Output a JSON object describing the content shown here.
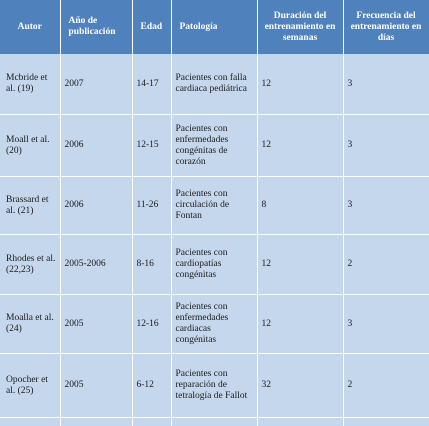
{
  "headers": {
    "autor": "Autor",
    "anio": "Año de publicación",
    "edad": "Edad",
    "patologia": "Patología",
    "duracion": "Duración del entrenamiento en semanas",
    "frecuencia": "Frecuencia del entrenamiento en días"
  },
  "rows": [
    {
      "autor": "Mcbride et al. (19)",
      "anio": "2007",
      "edad": "14-17",
      "patologia": "Pacientes con falla cardiaca pediátrica",
      "duracion": "12",
      "frecuencia": "3"
    },
    {
      "autor": "Moall et al. (20)",
      "anio": "2006",
      "edad": "12-15",
      "patologia": "Pacientes con enfermedades congénitas de corazón",
      "duracion": "12",
      "frecuencia": "3"
    },
    {
      "autor": "Brassard et al. (21)",
      "anio": "2006",
      "edad": "11-26",
      "patologia": "Pacientes con circulación de Fontan",
      "duracion": "8",
      "frecuencia": "3"
    },
    {
      "autor": "Rhodes et al. (22,23)",
      "anio": "2005-2006",
      "edad": "8-16",
      "patologia": "Pacientes con cardiopatías congénitas",
      "duracion": "12",
      "frecuencia": "2"
    },
    {
      "autor": "Moalla et al. (24)",
      "anio": "2005",
      "edad": "12-16",
      "patologia": "Pacientes con enfermedades cardiacas congénitas",
      "duracion": "12",
      "frecuencia": "3"
    },
    {
      "autor": "Opocher et al. (25)",
      "anio": "2005",
      "edad": "6-12",
      "patologia": "Pacientes con reparación de tetralogía de Fallot",
      "duracion": "32",
      "frecuencia": "2"
    },
    {
      "autor": "",
      "anio": "",
      "edad": "",
      "patologia": "",
      "duracion": "",
      "frecuencia": ""
    }
  ]
}
